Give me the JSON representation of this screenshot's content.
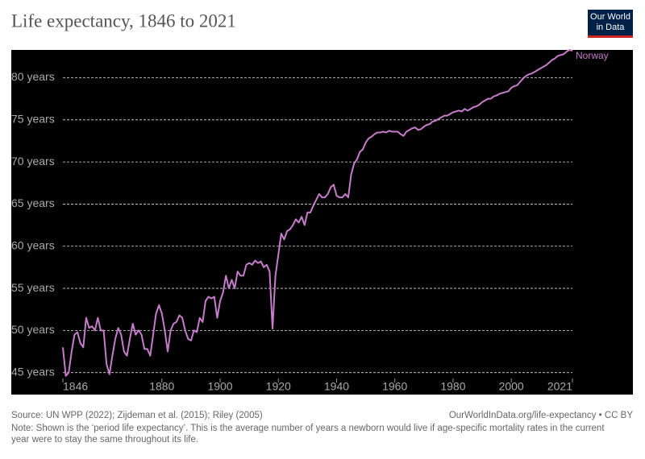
{
  "chart_data": {
    "type": "line",
    "title": "Life expectancy, 1846 to 2021",
    "x": [
      1846,
      1847,
      1848,
      1849,
      1850,
      1851,
      1852,
      1853,
      1854,
      1855,
      1856,
      1857,
      1858,
      1859,
      1860,
      1861,
      1862,
      1863,
      1864,
      1865,
      1866,
      1867,
      1868,
      1869,
      1870,
      1871,
      1872,
      1873,
      1874,
      1875,
      1876,
      1877,
      1878,
      1879,
      1880,
      1881,
      1882,
      1883,
      1884,
      1885,
      1886,
      1887,
      1888,
      1889,
      1890,
      1891,
      1892,
      1893,
      1894,
      1895,
      1896,
      1897,
      1898,
      1899,
      1900,
      1901,
      1902,
      1903,
      1904,
      1905,
      1906,
      1907,
      1908,
      1909,
      1910,
      1911,
      1912,
      1913,
      1914,
      1915,
      1916,
      1917,
      1918,
      1919,
      1920,
      1921,
      1922,
      1923,
      1924,
      1925,
      1926,
      1927,
      1928,
      1929,
      1930,
      1931,
      1932,
      1933,
      1934,
      1935,
      1936,
      1937,
      1938,
      1939,
      1940,
      1941,
      1942,
      1943,
      1944,
      1945,
      1946,
      1947,
      1948,
      1949,
      1950,
      1951,
      1952,
      1953,
      1954,
      1955,
      1956,
      1957,
      1958,
      1959,
      1960,
      1961,
      1962,
      1963,
      1964,
      1965,
      1966,
      1967,
      1968,
      1969,
      1970,
      1971,
      1972,
      1973,
      1974,
      1975,
      1976,
      1977,
      1978,
      1979,
      1980,
      1981,
      1982,
      1983,
      1984,
      1985,
      1986,
      1987,
      1988,
      1989,
      1990,
      1991,
      1992,
      1993,
      1994,
      1995,
      1996,
      1997,
      1998,
      1999,
      2000,
      2001,
      2002,
      2003,
      2004,
      2005,
      2006,
      2007,
      2008,
      2009,
      2010,
      2011,
      2012,
      2013,
      2014,
      2015,
      2016,
      2017,
      2018,
      2019,
      2020,
      2021
    ],
    "series": [
      {
        "name": "Norway",
        "color": "#c77ccb",
        "values": [
          48,
          44.6,
          45,
          47.5,
          49.5,
          49.8,
          48.5,
          48,
          51.5,
          50.3,
          50.5,
          50,
          51.5,
          50,
          50,
          46,
          44.8,
          47,
          49,
          50.3,
          49.5,
          47.5,
          47,
          49,
          50.8,
          49.5,
          50,
          49.5,
          47.8,
          47.8,
          47,
          49.5,
          52,
          53,
          52,
          50,
          47.5,
          50,
          50.8,
          51,
          51.8,
          51.5,
          50,
          49,
          48.8,
          50,
          49.8,
          51.5,
          51,
          53.5,
          54,
          53.8,
          54,
          51.5,
          53.5,
          54.5,
          56.5,
          55,
          56,
          55,
          57,
          56.5,
          56.5,
          57.8,
          58,
          57.8,
          58.3,
          58,
          58.2,
          57.5,
          57.8,
          57,
          50.2,
          56.5,
          59,
          61.5,
          60.8,
          61.8,
          62,
          62.5,
          63.2,
          62.8,
          63.5,
          62.5,
          64,
          64,
          64.8,
          65.5,
          66.2,
          65.8,
          65.8,
          66.2,
          67,
          67.3,
          66,
          65.8,
          65.8,
          66.2,
          65.8,
          68.5,
          69.8,
          70.3,
          71.2,
          71.5,
          72.3,
          72.8,
          73,
          73.3,
          73.5,
          73.5,
          73.6,
          73.5,
          73.7,
          73.6,
          73.6,
          73.6,
          73.3,
          73.1,
          73.6,
          73.8,
          74,
          74.1,
          73.8,
          73.9,
          74.2,
          74.4,
          74.5,
          74.8,
          74.9,
          75.1,
          75.3,
          75.5,
          75.5,
          75.7,
          75.9,
          76,
          76.1,
          76,
          76.3,
          76.1,
          76.3,
          76.5,
          76.6,
          76.8,
          77.1,
          77.3,
          77.5,
          77.5,
          77.8,
          77.9,
          78.1,
          78.2,
          78.3,
          78.4,
          78.8,
          79,
          79.1,
          79.5,
          79.9,
          80.2,
          80.4,
          80.5,
          80.7,
          80.9,
          81.1,
          81.3,
          81.5,
          81.8,
          82.1,
          82.3,
          82.6,
          82.7,
          82.8,
          83.1,
          83.3,
          83.2
        ]
      }
    ],
    "xlim": [
      1846,
      2021
    ],
    "xticks": [
      1846,
      1880,
      1900,
      1920,
      1940,
      1960,
      1980,
      2000,
      2021
    ],
    "ylim": [
      44.3,
      83.3
    ],
    "yticks": [
      {
        "value": 45,
        "label": "45 years"
      },
      {
        "value": 50,
        "label": "50 years"
      },
      {
        "value": 55,
        "label": "55 years"
      },
      {
        "value": 60,
        "label": "60 years"
      },
      {
        "value": 65,
        "label": "65 years"
      },
      {
        "value": 70,
        "label": "70 years"
      },
      {
        "value": 75,
        "label": "75 years"
      },
      {
        "value": 80,
        "label": "80 years"
      }
    ],
    "grid": true
  },
  "logo": {
    "line1": "Our World",
    "line2": "in Data"
  },
  "footer": {
    "source": "Source: UN WPP (2022); Zijdeman et al. (2015); Riley (2005)",
    "link": "OurWorldInData.org/life-expectancy • CC BY",
    "note1": "Note: Shown is the ‘period life expectancy’. This is the average number of years a newborn would live if age-specific mortality rates in the current",
    "note2": "year were to stay the same throughout its life."
  }
}
